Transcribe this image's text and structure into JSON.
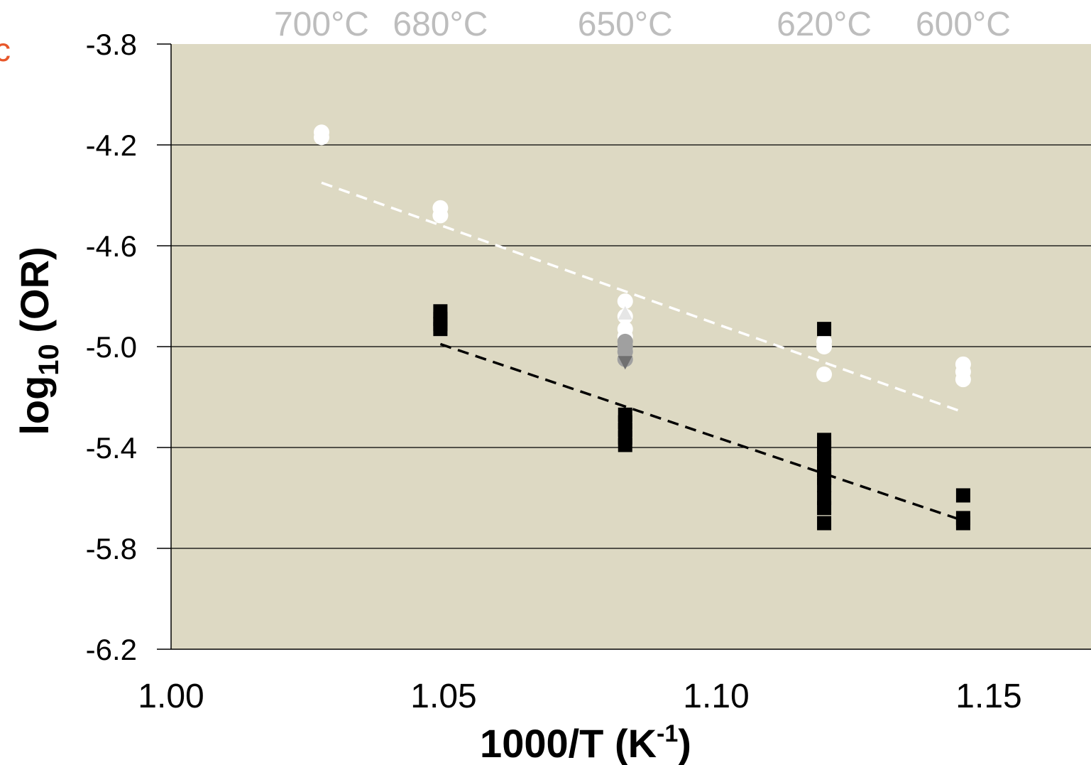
{
  "panel_label": "c",
  "chart_data": {
    "type": "scatter",
    "xlabel_main": "1000/T (K",
    "xlabel_sup": "-1",
    "xlabel_end": ")",
    "ylabel_main": "log",
    "ylabel_sub": "10",
    "ylabel_end": " (OR)",
    "xlim": [
      1.0,
      1.17
    ],
    "ylim": [
      -6.2,
      -3.8
    ],
    "x_ticks": [
      1.0,
      1.05,
      1.1,
      1.15
    ],
    "x_tick_labels": [
      "1.00",
      "1.05",
      "1.10",
      "1.15"
    ],
    "y_ticks": [
      -3.8,
      -4.2,
      -4.6,
      -5.0,
      -5.4,
      -5.8,
      -6.2
    ],
    "y_tick_labels": [
      "-3.8",
      "-4.2",
      "-4.6",
      "-5.0",
      "-5.4",
      "-5.8",
      "-6.2"
    ],
    "grid": "horizontal",
    "background_color": "#ddd9c3",
    "top_axis_labels": [
      {
        "label": "700°C",
        "x": 1.0276
      },
      {
        "label": "680°C",
        "x": 1.0494
      },
      {
        "label": "650°C",
        "x": 1.0833
      },
      {
        "label": "620°C",
        "x": 1.1198
      },
      {
        "label": "600°C",
        "x": 1.1453
      }
    ],
    "series": [
      {
        "marker": "circle",
        "color": "#ffffff",
        "points": [
          [
            1.0276,
            -4.15
          ],
          [
            1.0276,
            -4.17
          ],
          [
            1.0494,
            -4.45
          ],
          [
            1.0494,
            -4.48
          ],
          [
            1.0833,
            -4.82
          ],
          [
            1.0833,
            -4.88
          ],
          [
            1.0833,
            -4.93
          ],
          [
            1.0833,
            -4.96
          ],
          [
            1.1198,
            -4.98
          ],
          [
            1.1198,
            -5.0
          ],
          [
            1.1198,
            -5.11
          ],
          [
            1.1453,
            -5.07
          ],
          [
            1.1453,
            -5.1
          ],
          [
            1.1453,
            -5.13
          ]
        ]
      },
      {
        "marker": "circle",
        "color": "#a0a0a0",
        "points": [
          [
            1.0833,
            -4.98
          ],
          [
            1.0833,
            -5.0
          ],
          [
            1.0833,
            -5.02
          ],
          [
            1.0833,
            -5.05
          ]
        ]
      },
      {
        "marker": "triangle",
        "color": "#e6e6e6",
        "points": [
          [
            1.0833,
            -4.87
          ]
        ]
      },
      {
        "marker": "triangle-down",
        "color": "#707070",
        "points": [
          [
            1.0833,
            -5.06
          ]
        ]
      },
      {
        "marker": "square",
        "color": "#000000",
        "points": [
          [
            1.0494,
            -4.86
          ],
          [
            1.0494,
            -4.89
          ],
          [
            1.0494,
            -4.91
          ],
          [
            1.0494,
            -4.93
          ],
          [
            1.0833,
            -5.27
          ],
          [
            1.0833,
            -5.3
          ],
          [
            1.0833,
            -5.33
          ],
          [
            1.0833,
            -5.36
          ],
          [
            1.0833,
            -5.39
          ],
          [
            1.1198,
            -4.93
          ],
          [
            1.1198,
            -5.37
          ],
          [
            1.1198,
            -5.4
          ],
          [
            1.1198,
            -5.43
          ],
          [
            1.1198,
            -5.46
          ],
          [
            1.1198,
            -5.49
          ],
          [
            1.1198,
            -5.52
          ],
          [
            1.1198,
            -5.55
          ],
          [
            1.1198,
            -5.6
          ],
          [
            1.1198,
            -5.64
          ],
          [
            1.1198,
            -5.7
          ],
          [
            1.1453,
            -5.59
          ],
          [
            1.1453,
            -5.68
          ],
          [
            1.1453,
            -5.7
          ]
        ]
      }
    ],
    "trendlines": [
      {
        "color": "#ffffff",
        "style": "dashed",
        "x": [
          1.0276,
          1.1453
        ],
        "y": [
          -4.35,
          -5.26
        ]
      },
      {
        "color": "#000000",
        "style": "dashed",
        "x": [
          1.0494,
          1.1453
        ],
        "y": [
          -4.99,
          -5.69
        ]
      }
    ]
  }
}
